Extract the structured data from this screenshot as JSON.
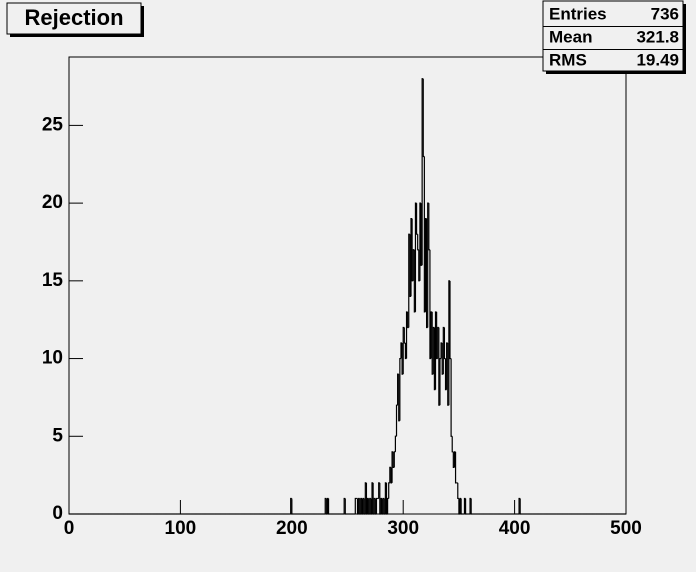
{
  "chart_data": {
    "type": "histogram",
    "title": "Rejection",
    "color": "#000000",
    "stats": {
      "labels": [
        "Entries",
        "Mean",
        "RMS"
      ],
      "values": [
        736,
        321.8,
        19.49
      ]
    },
    "xlim": [
      0,
      500
    ],
    "ylim": [
      0,
      29.4
    ],
    "xticks": [
      0,
      100,
      200,
      300,
      400,
      500
    ],
    "yticks": [
      0,
      5,
      10,
      15,
      20,
      25
    ],
    "bins": [
      0,
      1,
      2,
      3,
      4,
      5,
      6,
      7,
      8,
      9,
      10,
      11,
      12,
      13,
      14,
      15,
      16,
      17,
      18,
      19,
      20,
      21,
      22,
      23,
      24,
      25,
      26,
      27,
      28,
      29,
      30,
      31,
      32,
      33,
      34,
      35,
      36,
      37,
      38,
      39,
      40,
      41,
      42,
      43,
      44,
      45,
      46,
      47,
      48,
      49,
      50,
      51,
      52,
      53,
      54,
      55,
      56,
      57,
      58,
      59,
      60,
      61,
      62,
      63,
      64,
      65,
      66,
      67,
      68,
      69,
      70,
      71,
      72,
      73,
      74,
      75,
      76,
      77,
      78,
      79,
      80,
      81,
      82,
      83,
      84,
      85,
      86,
      87,
      88,
      89,
      90,
      91,
      92,
      93,
      94,
      95,
      96,
      97,
      98,
      99,
      100,
      101,
      102,
      103,
      104,
      105,
      106,
      107,
      108,
      109,
      110,
      111,
      112,
      113,
      114,
      115,
      116,
      117,
      118,
      119,
      120,
      121,
      122,
      123,
      124,
      125,
      126,
      127,
      128,
      129,
      130,
      131,
      132,
      133,
      134,
      135,
      136,
      137,
      138,
      139,
      140,
      141,
      142,
      143,
      144,
      145,
      146,
      147,
      148,
      149,
      150,
      151,
      152,
      153,
      154,
      155,
      156,
      157,
      158,
      159,
      160,
      161,
      162,
      163,
      164,
      165,
      166,
      167,
      168,
      169,
      170,
      171,
      172,
      173,
      174,
      175,
      176,
      177,
      178,
      179,
      180,
      181,
      182,
      183,
      184,
      185,
      186,
      187,
      188,
      189,
      190,
      191,
      192,
      193,
      194,
      195,
      196,
      197,
      198,
      199,
      200,
      201,
      202,
      203,
      204,
      205,
      206,
      207,
      208,
      209,
      210,
      211,
      212,
      213,
      214,
      215,
      216,
      217,
      218,
      219,
      220,
      221,
      222,
      223,
      224,
      225,
      226,
      227,
      228,
      229,
      230,
      231,
      232,
      233,
      234,
      235,
      236,
      237,
      238,
      239,
      240,
      241,
      242,
      243,
      244,
      245,
      246,
      247,
      248,
      249,
      250,
      251,
      252,
      253,
      254,
      255,
      256,
      257,
      258,
      259,
      260,
      261,
      262,
      263,
      264,
      265,
      266,
      267,
      268,
      269,
      270,
      271,
      272,
      273,
      274,
      275,
      276,
      277,
      278,
      279,
      280,
      281,
      282,
      283,
      284,
      285,
      286,
      287,
      288,
      289,
      290,
      291,
      292,
      293,
      294,
      295,
      296,
      297,
      298,
      299,
      300,
      301,
      302,
      303,
      304,
      305,
      306,
      307,
      308,
      309,
      310,
      311,
      312,
      313,
      314,
      315,
      316,
      317,
      318,
      319,
      320,
      321,
      322,
      323,
      324,
      325,
      326,
      327,
      328,
      329,
      330,
      331,
      332,
      333,
      334,
      335,
      336,
      337,
      338,
      339,
      340,
      341,
      342,
      343,
      344,
      345,
      346,
      347,
      348,
      349,
      350,
      351,
      352,
      353,
      354,
      355,
      356,
      357,
      358,
      359,
      360,
      361,
      362,
      363,
      364,
      365,
      366,
      367,
      368,
      369,
      370,
      371,
      372,
      373,
      374,
      375,
      376,
      377,
      378,
      379,
      380,
      381,
      382,
      383,
      384,
      385,
      386,
      387,
      388,
      389,
      390,
      391,
      392,
      393,
      394,
      395,
      396,
      397,
      398,
      399,
      400,
      401,
      402,
      403,
      404,
      405,
      406,
      407,
      408,
      409,
      410,
      411,
      412,
      413,
      414,
      415,
      416,
      417,
      418,
      419,
      420,
      421,
      422,
      423,
      424,
      425,
      426,
      427,
      428,
      429,
      430,
      431,
      432,
      433,
      434,
      435,
      436,
      437,
      438,
      439,
      440,
      441,
      442,
      443,
      444,
      445,
      446,
      447,
      448,
      449,
      450,
      451,
      452,
      453,
      454,
      455,
      456,
      457,
      458,
      459,
      460,
      461,
      462,
      463,
      464,
      465,
      466,
      467,
      468,
      469,
      470,
      471,
      472,
      473,
      474,
      475,
      476,
      477,
      478,
      479,
      480,
      481,
      482,
      483,
      484,
      485,
      486,
      487,
      488,
      489,
      490,
      491,
      492,
      493,
      494,
      495,
      496,
      497,
      498,
      499,
      500
    ],
    "values": [
      0,
      0,
      0,
      0,
      0,
      0,
      0,
      0,
      0,
      0,
      0,
      0,
      0,
      0,
      0,
      0,
      0,
      0,
      0,
      0,
      0,
      0,
      0,
      0,
      0,
      0,
      0,
      0,
      0,
      0,
      0,
      0,
      0,
      0,
      0,
      0,
      0,
      0,
      0,
      0,
      0,
      0,
      0,
      0,
      0,
      0,
      0,
      0,
      0,
      0,
      0,
      0,
      0,
      0,
      0,
      0,
      0,
      0,
      0,
      0,
      0,
      0,
      0,
      0,
      0,
      0,
      0,
      0,
      0,
      0,
      0,
      0,
      0,
      0,
      0,
      0,
      0,
      0,
      0,
      0,
      0,
      0,
      0,
      0,
      0,
      0,
      0,
      0,
      0,
      0,
      0,
      0,
      0,
      0,
      0,
      0,
      0,
      0,
      0,
      0,
      0,
      0,
      0,
      0,
      0,
      0,
      0,
      0,
      0,
      0,
      0,
      0,
      0,
      0,
      0,
      0,
      0,
      0,
      0,
      0,
      0,
      0,
      0,
      0,
      0,
      0,
      0,
      0,
      0,
      0,
      0,
      0,
      0,
      0,
      0,
      0,
      0,
      0,
      0,
      0,
      0,
      0,
      0,
      0,
      0,
      0,
      0,
      0,
      0,
      0,
      0,
      0,
      0,
      0,
      0,
      0,
      0,
      0,
      0,
      0,
      0,
      0,
      0,
      0,
      0,
      0,
      0,
      0,
      0,
      0,
      0,
      0,
      0,
      0,
      0,
      0,
      0,
      0,
      0,
      0,
      0,
      0,
      0,
      0,
      0,
      0,
      0,
      0,
      0,
      0,
      0,
      0,
      0,
      0,
      0,
      0,
      0,
      0,
      0,
      1,
      0,
      0,
      0,
      0,
      0,
      0,
      0,
      0,
      0,
      0,
      0,
      0,
      0,
      0,
      0,
      0,
      0,
      0,
      0,
      0,
      0,
      0,
      0,
      0,
      0,
      0,
      0,
      0,
      0,
      0,
      1,
      0,
      1,
      0,
      0,
      0,
      0,
      0,
      0,
      0,
      0,
      0,
      0,
      0,
      0,
      0,
      0,
      1,
      0,
      0,
      0,
      0,
      0,
      0,
      0,
      0,
      0,
      1,
      1,
      0,
      1,
      0,
      1,
      0,
      1,
      0,
      2,
      0,
      1,
      0,
      1,
      0,
      2,
      0,
      1,
      0,
      1,
      1,
      2,
      0,
      1,
      0,
      1,
      0,
      2,
      0,
      1,
      2,
      3,
      2,
      4,
      3,
      4,
      5,
      7,
      9,
      6,
      10,
      11,
      9,
      12,
      11,
      10,
      13,
      12,
      18,
      14,
      19,
      15,
      17,
      13,
      20,
      18,
      17,
      15,
      20,
      16,
      28,
      23,
      13,
      19,
      12,
      20,
      17,
      10,
      13,
      9,
      12,
      8,
      13,
      10,
      12,
      7,
      10,
      11,
      9,
      12,
      10,
      8,
      11,
      7,
      15,
      10,
      5,
      4,
      3,
      4,
      2,
      2,
      1,
      0,
      1,
      0,
      0,
      0,
      1,
      0,
      0,
      0,
      0,
      1,
      0,
      0,
      0,
      0,
      0,
      0,
      0,
      0,
      0,
      0,
      0,
      0,
      0,
      0,
      0,
      0,
      0,
      0,
      0,
      0,
      0,
      0,
      0,
      0,
      0,
      0,
      0,
      0,
      0,
      0,
      0,
      0,
      0,
      0,
      0,
      0,
      0,
      0,
      0,
      0,
      0,
      0,
      0,
      1,
      0,
      0,
      0,
      0,
      0,
      0,
      0,
      0,
      0,
      0,
      0,
      0,
      0,
      0,
      0,
      0,
      0,
      0,
      0,
      0,
      0,
      0,
      0,
      0,
      0,
      0,
      0,
      0,
      0,
      0,
      0,
      0,
      0,
      0,
      0,
      0,
      0,
      0,
      0,
      0,
      0,
      0,
      0,
      0,
      0,
      0,
      0,
      0,
      0,
      0,
      0,
      0,
      0,
      0,
      0,
      0,
      0,
      0,
      0,
      0,
      0,
      0,
      0,
      0,
      0,
      0,
      0,
      0,
      0,
      0,
      0,
      0,
      0,
      0,
      0,
      0,
      0,
      0,
      0,
      0,
      0,
      0,
      0,
      0,
      0,
      0,
      0,
      0,
      0,
      0,
      0,
      0,
      0,
      0,
      0
    ]
  }
}
